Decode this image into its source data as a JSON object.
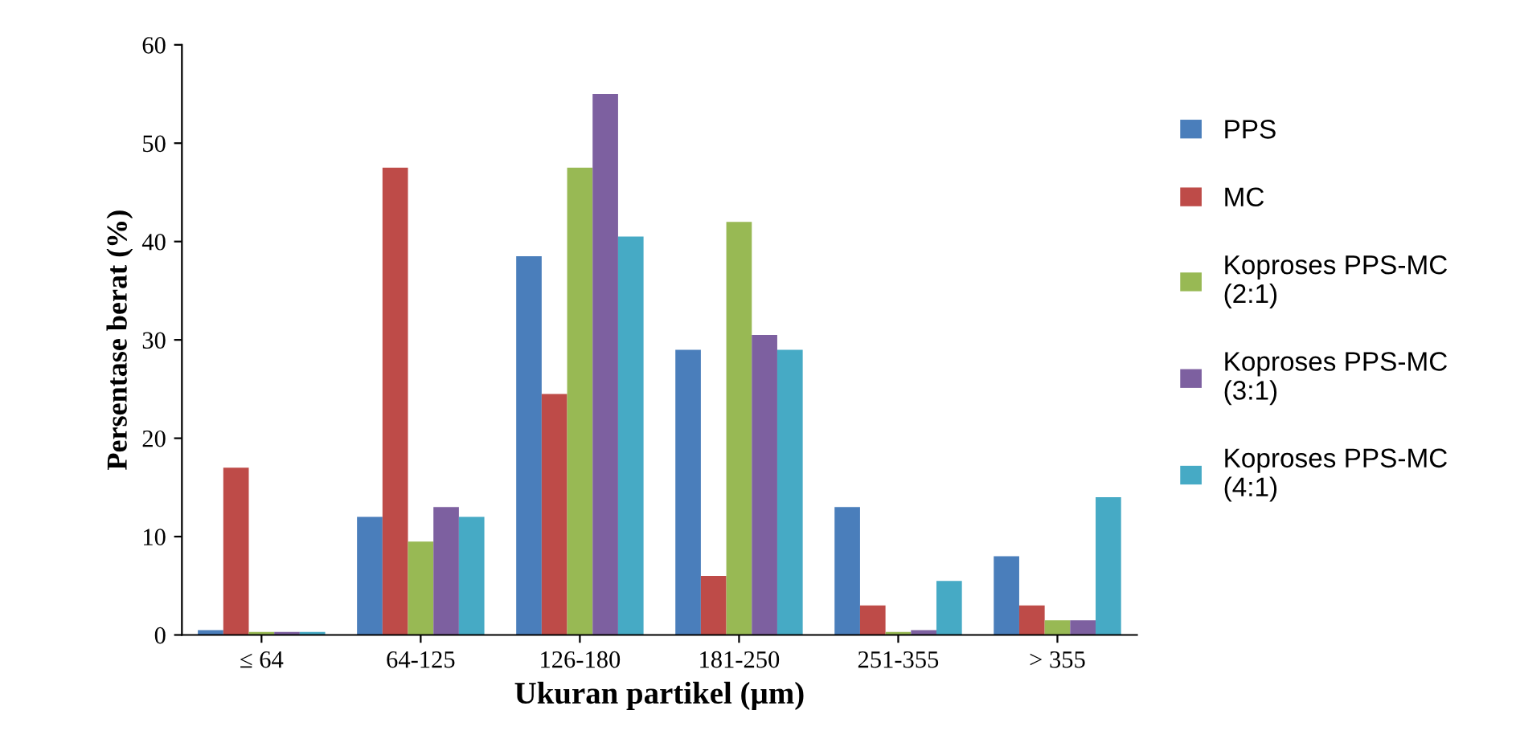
{
  "chart_data": {
    "type": "bar",
    "xlabel": "Ukuran partikel (µm)",
    "ylabel": "Persentase berat (%)",
    "categories": [
      "≤ 64",
      "64-125",
      "126-180",
      "181-250",
      "251-355",
      "> 355"
    ],
    "series": [
      {
        "name": "PPS",
        "color": "#4a7ebb",
        "values": [
          0.5,
          12,
          38.5,
          29,
          13,
          8
        ]
      },
      {
        "name": "MC",
        "color": "#be4b48",
        "values": [
          17,
          47.5,
          24.5,
          6,
          3,
          3
        ]
      },
      {
        "name": "Koproses PPS-MC\n(2:1)",
        "color": "#98b954",
        "values": [
          0.3,
          9.5,
          47.5,
          42,
          0.3,
          1.5
        ]
      },
      {
        "name": "Koproses PPS-MC\n(3:1)",
        "color": "#7d60a0",
        "values": [
          0.3,
          13,
          55,
          30.5,
          0.5,
          1.5
        ]
      },
      {
        "name": "Koproses PPS-MC\n(4:1)",
        "color": "#46aac5",
        "values": [
          0.3,
          12,
          40.5,
          29,
          5.5,
          14
        ]
      }
    ],
    "ylim": [
      0,
      60
    ],
    "yticks": [
      0,
      10,
      20,
      30,
      40,
      50,
      60
    ],
    "grid": false,
    "legend": "right"
  }
}
